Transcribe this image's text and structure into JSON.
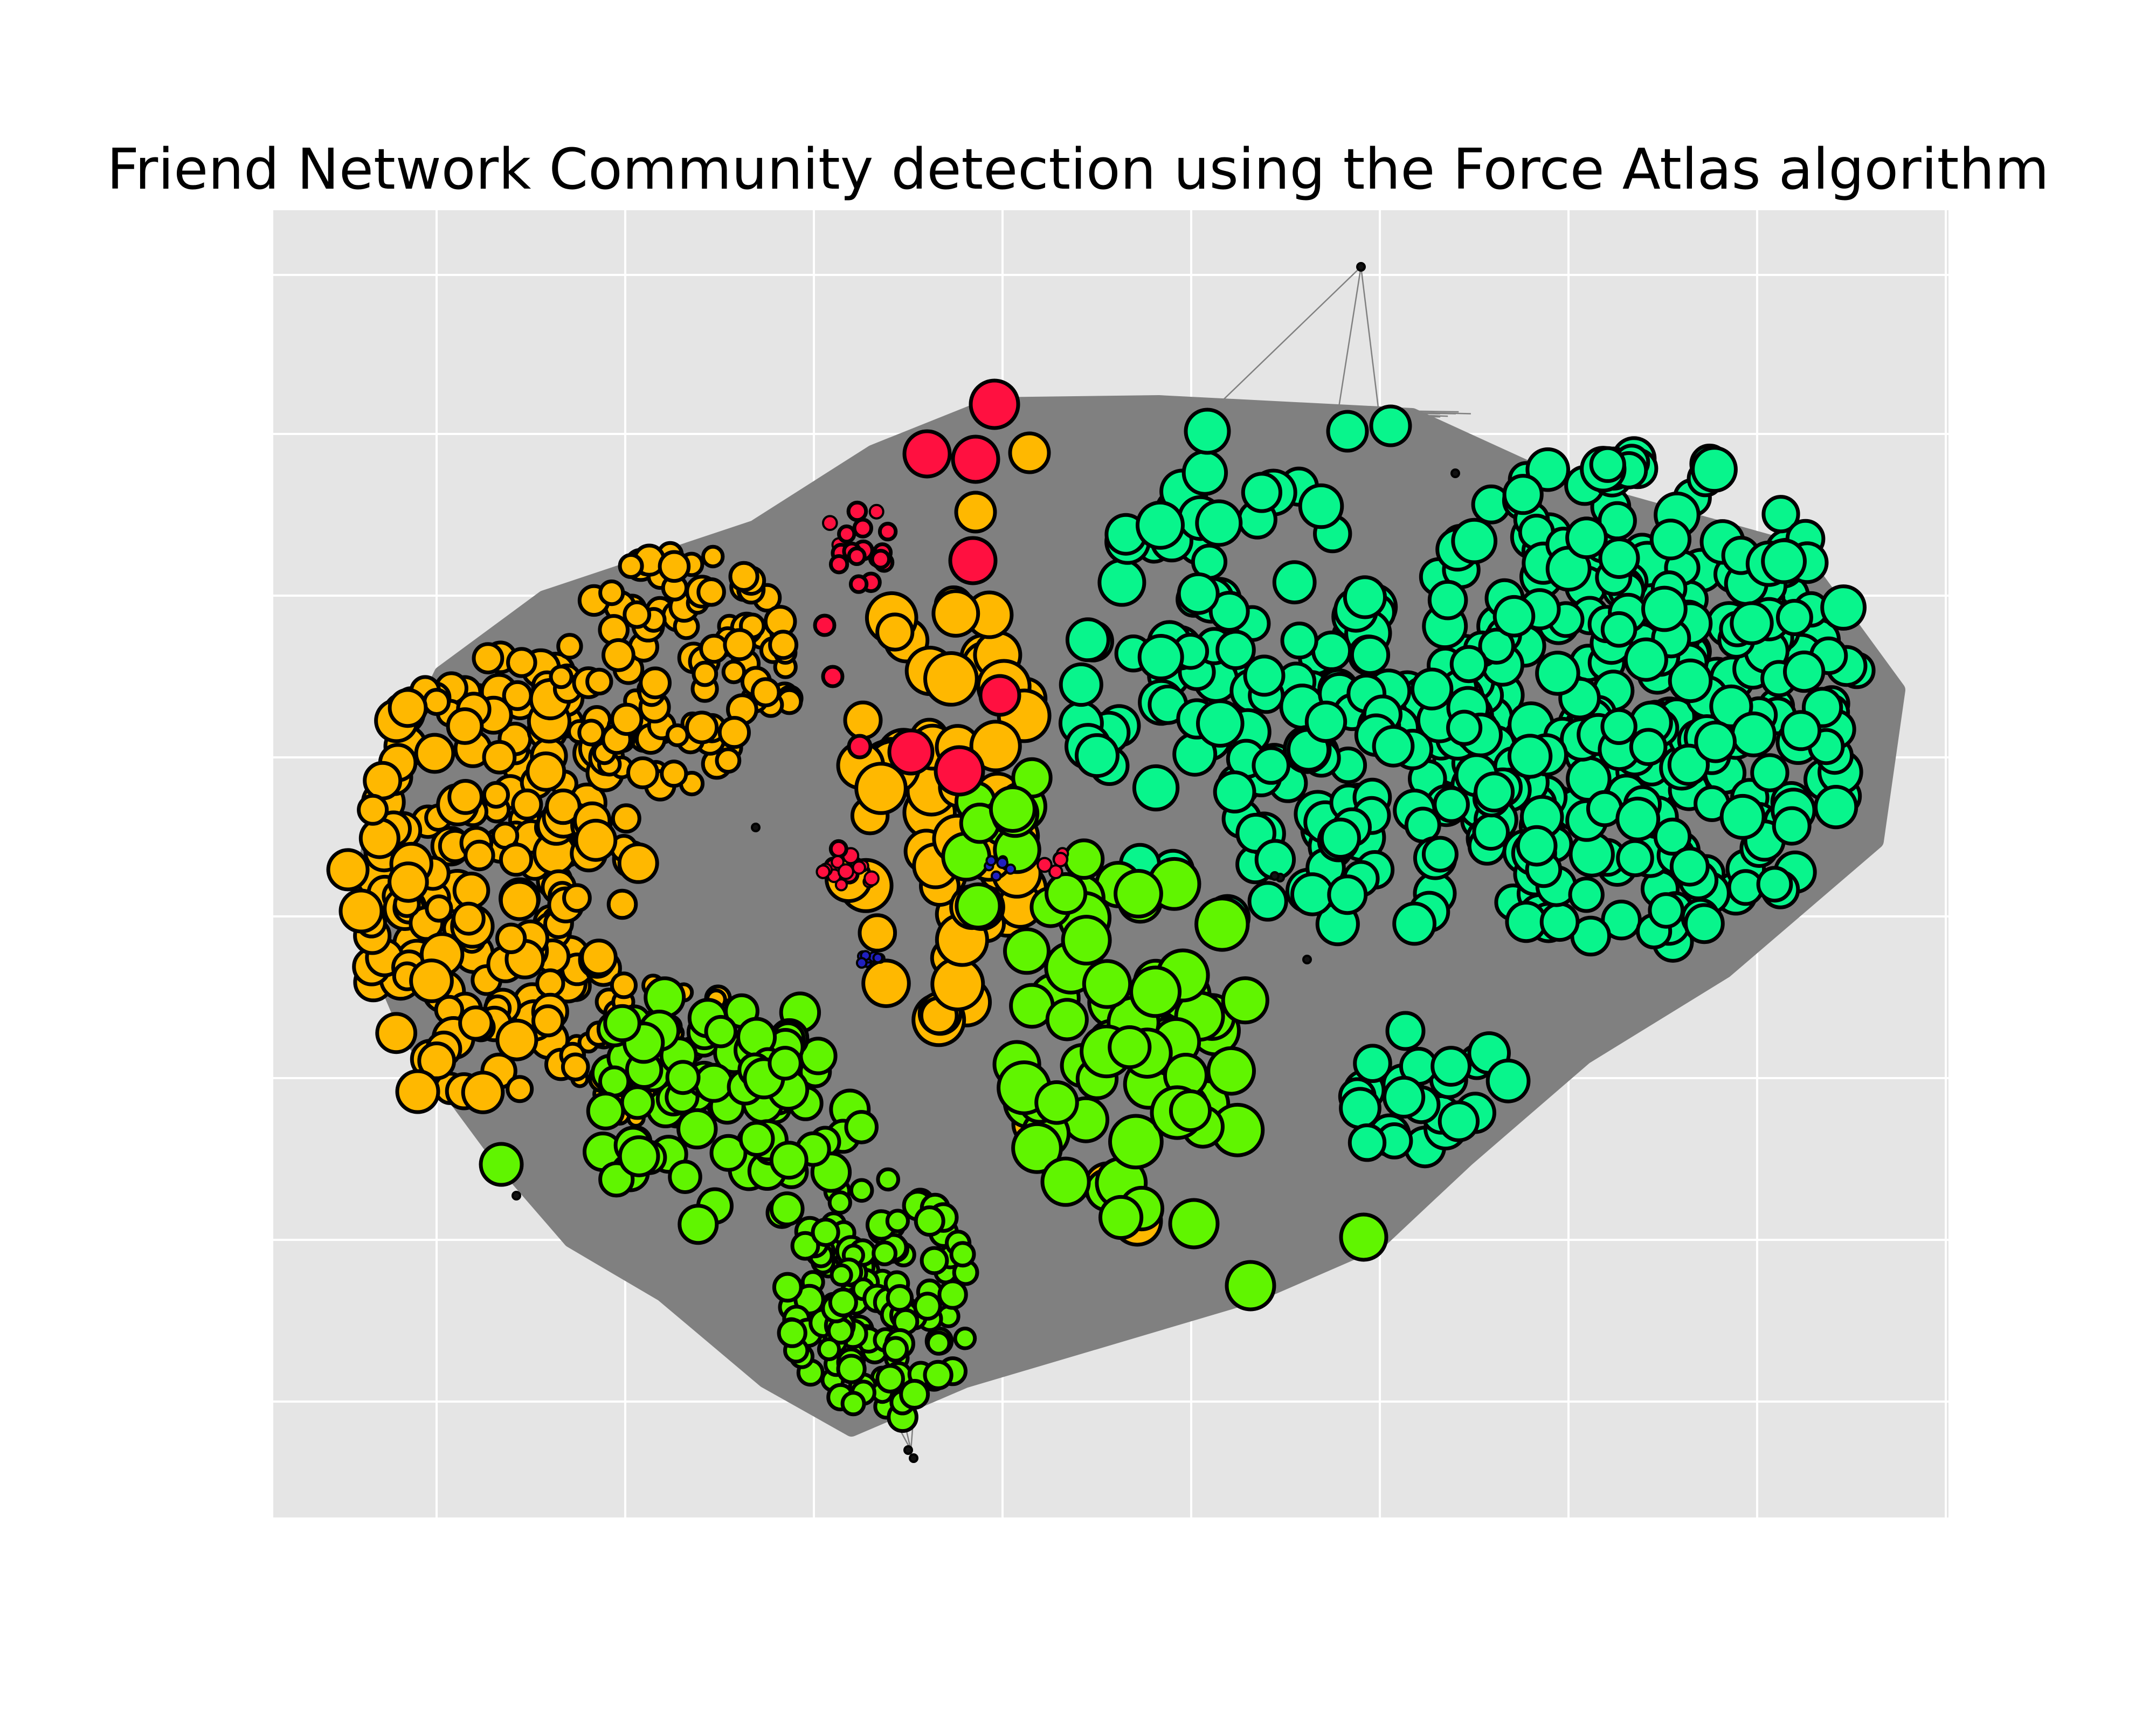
{
  "title": "Friend Network Community detection using the Force Atlas algorithm",
  "colors": {
    "plot_background": "#e5e5e5",
    "grid": "#ffffff",
    "edge": "#808080",
    "node_outline": "#000000",
    "tiny_node": "#111111"
  },
  "communities": [
    {
      "id": "orange",
      "color": "#ffb800"
    },
    {
      "id": "red",
      "color": "#ff1040"
    },
    {
      "id": "teal",
      "color": "#08f58c"
    },
    {
      "id": "lime",
      "color": "#60f500"
    },
    {
      "id": "blue",
      "color": "#2020c0"
    }
  ]
}
